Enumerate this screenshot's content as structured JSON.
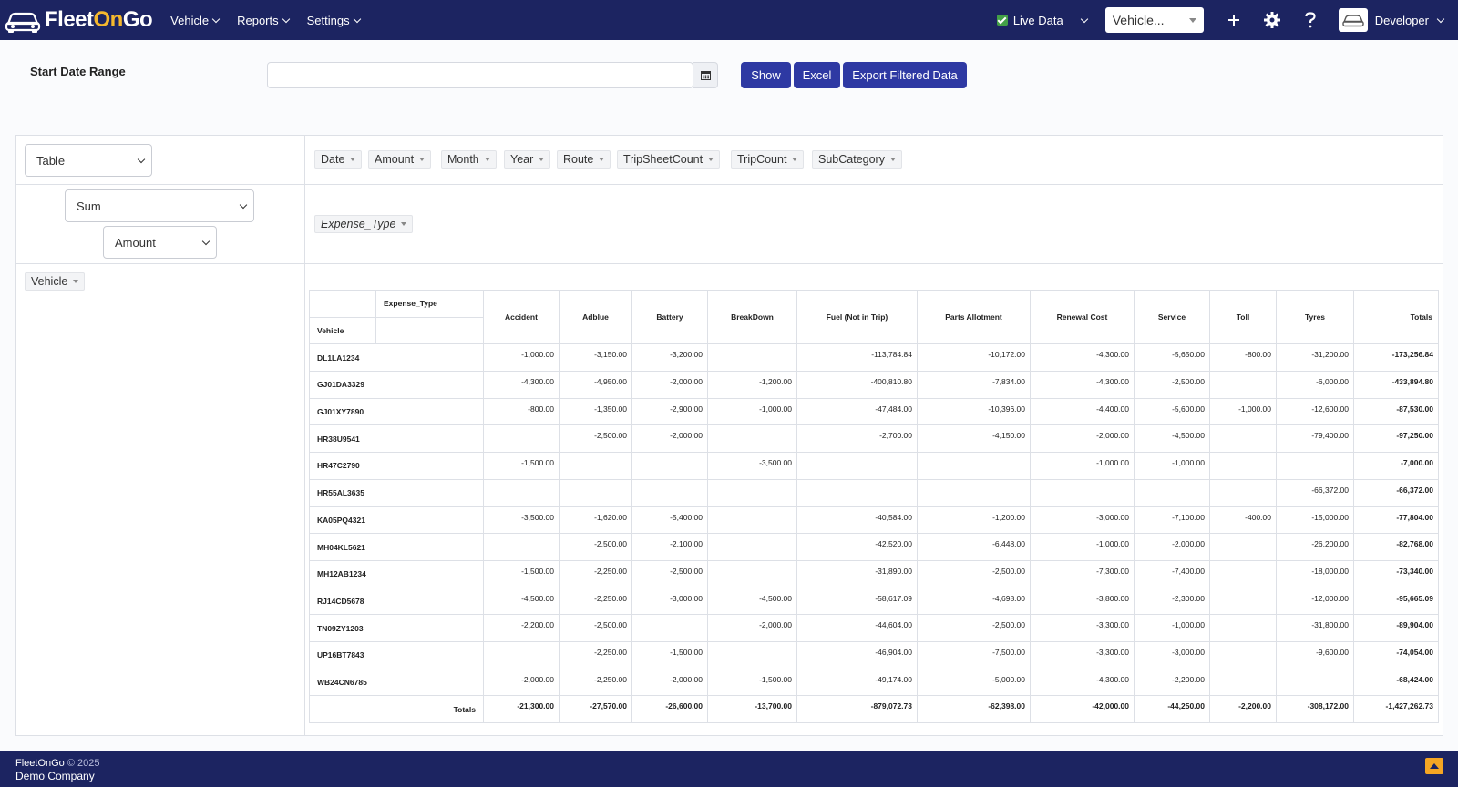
{
  "brand": {
    "part1": "Fleet",
    "part2": "On",
    "part3": "Go"
  },
  "nav": {
    "vehicle": "Vehicle",
    "reports": "Reports",
    "settings": "Settings"
  },
  "header_right": {
    "live_data": "Live Data",
    "vehicle_placeholder": "Vehicle...",
    "user": "Developer"
  },
  "filters": {
    "start_date_label": "Start Date Range",
    "date_value": "",
    "show": "Show",
    "excel": "Excel",
    "export": "Export Filtered Data"
  },
  "pivot": {
    "renderer": "Table",
    "aggregator": "Sum",
    "value_field": "Amount",
    "unused_attrs": [
      "Date",
      "Amount",
      "Month",
      "Year",
      "Route",
      "TripSheetCount",
      "TripCount",
      "SubCategory"
    ],
    "col_attr": "Expense_Type",
    "row_attr": "Vehicle",
    "header_col_attr": "Expense_Type",
    "header_row_attr": "Vehicle",
    "columns": [
      "Accident",
      "Adblue",
      "Battery",
      "BreakDown",
      "Fuel (Not in Trip)",
      "Parts Allotment",
      "Renewal Cost",
      "Service",
      "Toll",
      "Tyres"
    ],
    "totals_label": "Totals",
    "rows": [
      {
        "vehicle": "DL1LA1234",
        "values": [
          "-1,000.00",
          "-3,150.00",
          "-3,200.00",
          "",
          "-113,784.84",
          "-10,172.00",
          "-4,300.00",
          "-5,650.00",
          "-800.00",
          "-31,200.00"
        ],
        "total": "-173,256.84"
      },
      {
        "vehicle": "GJ01DA3329",
        "values": [
          "-4,300.00",
          "-4,950.00",
          "-2,000.00",
          "-1,200.00",
          "-400,810.80",
          "-7,834.00",
          "-4,300.00",
          "-2,500.00",
          "",
          "-6,000.00"
        ],
        "total": "-433,894.80"
      },
      {
        "vehicle": "GJ01XY7890",
        "values": [
          "-800.00",
          "-1,350.00",
          "-2,900.00",
          "-1,000.00",
          "-47,484.00",
          "-10,396.00",
          "-4,400.00",
          "-5,600.00",
          "-1,000.00",
          "-12,600.00"
        ],
        "total": "-87,530.00"
      },
      {
        "vehicle": "HR38U9541",
        "values": [
          "",
          "-2,500.00",
          "-2,000.00",
          "",
          "-2,700.00",
          "-4,150.00",
          "-2,000.00",
          "-4,500.00",
          "",
          "-79,400.00"
        ],
        "total": "-97,250.00"
      },
      {
        "vehicle": "HR47C2790",
        "values": [
          "-1,500.00",
          "",
          "",
          "-3,500.00",
          "",
          "",
          "-1,000.00",
          "-1,000.00",
          "",
          ""
        ],
        "total": "-7,000.00"
      },
      {
        "vehicle": "HR55AL3635",
        "values": [
          "",
          "",
          "",
          "",
          "",
          "",
          "",
          "",
          "",
          "-66,372.00"
        ],
        "total": "-66,372.00"
      },
      {
        "vehicle": "KA05PQ4321",
        "values": [
          "-3,500.00",
          "-1,620.00",
          "-5,400.00",
          "",
          "-40,584.00",
          "-1,200.00",
          "-3,000.00",
          "-7,100.00",
          "-400.00",
          "-15,000.00"
        ],
        "total": "-77,804.00"
      },
      {
        "vehicle": "MH04KL5621",
        "values": [
          "",
          "-2,500.00",
          "-2,100.00",
          "",
          "-42,520.00",
          "-6,448.00",
          "-1,000.00",
          "-2,000.00",
          "",
          "-26,200.00"
        ],
        "total": "-82,768.00"
      },
      {
        "vehicle": "MH12AB1234",
        "values": [
          "-1,500.00",
          "-2,250.00",
          "-2,500.00",
          "",
          "-31,890.00",
          "-2,500.00",
          "-7,300.00",
          "-7,400.00",
          "",
          "-18,000.00"
        ],
        "total": "-73,340.00"
      },
      {
        "vehicle": "RJ14CD5678",
        "values": [
          "-4,500.00",
          "-2,250.00",
          "-3,000.00",
          "-4,500.00",
          "-58,617.09",
          "-4,698.00",
          "-3,800.00",
          "-2,300.00",
          "",
          "-12,000.00"
        ],
        "total": "-95,665.09"
      },
      {
        "vehicle": "TN09ZY1203",
        "values": [
          "-2,200.00",
          "-2,500.00",
          "",
          "-2,000.00",
          "-44,604.00",
          "-2,500.00",
          "-3,300.00",
          "-1,000.00",
          "",
          "-31,800.00"
        ],
        "total": "-89,904.00"
      },
      {
        "vehicle": "UP16BT7843",
        "values": [
          "",
          "-2,250.00",
          "-1,500.00",
          "",
          "-46,904.00",
          "-7,500.00",
          "-3,300.00",
          "-3,000.00",
          "",
          "-9,600.00"
        ],
        "total": "-74,054.00"
      },
      {
        "vehicle": "WB24CN6785",
        "values": [
          "-2,000.00",
          "-2,250.00",
          "-2,000.00",
          "-1,500.00",
          "-49,174.00",
          "-5,000.00",
          "-4,300.00",
          "-2,200.00",
          "",
          ""
        ],
        "total": "-68,424.00"
      }
    ],
    "column_totals": [
      "-21,300.00",
      "-27,570.00",
      "-26,600.00",
      "-13,700.00",
      "-879,072.73",
      "-62,398.00",
      "-42,000.00",
      "-44,250.00",
      "-2,200.00",
      "-308,172.00"
    ],
    "grand_total": "-1,427,262.73"
  },
  "footer": {
    "brand": "FleetOnGo",
    "copyright": "© 2025",
    "company": "Demo Company"
  },
  "colors": {
    "navbar": "#1c2461",
    "button": "#2e39a3",
    "accent": "#f5b82e",
    "live_check": "#43a047"
  },
  "icons": [
    "car-icon",
    "plus-icon",
    "gear-icon",
    "help-icon",
    "calendar-icon",
    "scroll-top-icon"
  ]
}
